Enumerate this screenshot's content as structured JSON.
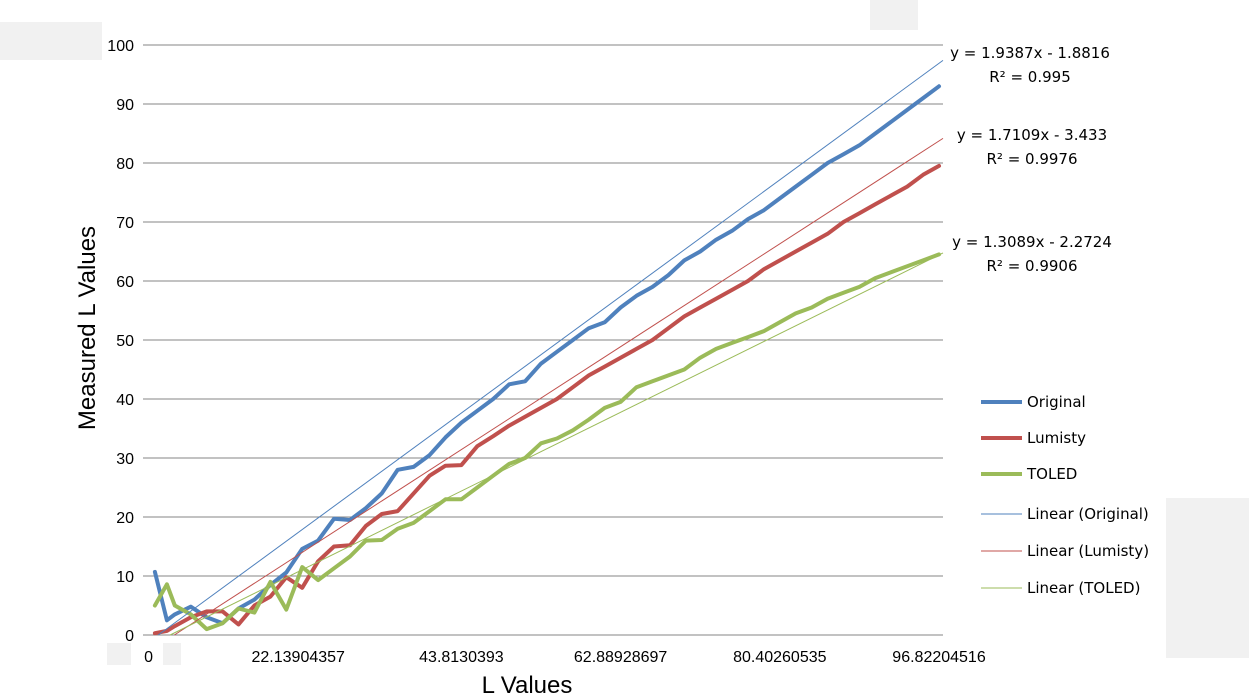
{
  "chart_data": {
    "type": "line",
    "title": "",
    "xlabel": "L Values",
    "ylabel": "Measured L Values",
    "ylim": [
      0,
      100
    ],
    "xlim": [
      0,
      100.5
    ],
    "y_ticks": [
      "0",
      "10",
      "20",
      "30",
      "40",
      "50",
      "60",
      "70",
      "80",
      "90",
      "100"
    ],
    "x_tick_labels": [
      {
        "label": "0",
        "x": 0.7
      },
      {
        "label": "22.13904357",
        "x": 19.5
      },
      {
        "label": "43.8130393",
        "x": 40.0
      },
      {
        "label": "62.88928697",
        "x": 60.0
      },
      {
        "label": "80.40260535",
        "x": 80.0
      },
      {
        "label": "96.82204516",
        "x": 100.0
      }
    ],
    "grid": "horizontal",
    "legend_position": "right",
    "series": [
      {
        "name": "Original",
        "color": "#4f81bd",
        "x": [
          1.5,
          3,
          4,
          6,
          8,
          10,
          12,
          14,
          16,
          18,
          20,
          22,
          24,
          26,
          28,
          30,
          32,
          34,
          36,
          38,
          40,
          42,
          44,
          46,
          48,
          50,
          52,
          54,
          56,
          58,
          60,
          62,
          64,
          66,
          68,
          70,
          72,
          74,
          76,
          78,
          80,
          82,
          84,
          86,
          88,
          90,
          92,
          94,
          96,
          98,
          100
        ],
        "y": [
          10.7,
          2.5,
          3.5,
          4.8,
          3.0,
          2.0,
          4.5,
          6.0,
          8.5,
          10.6,
          14.6,
          16,
          19.7,
          19.5,
          21.5,
          24,
          28,
          28.5,
          30.5,
          33.5,
          36,
          38,
          40,
          42.5,
          43,
          46,
          48,
          50,
          52,
          53,
          55.5,
          57.5,
          59,
          61,
          63.5,
          65,
          67,
          68.5,
          70.5,
          72,
          74,
          76,
          78,
          80,
          81.5,
          83,
          85,
          87,
          89,
          91,
          93
        ]
      },
      {
        "name": "Lumisty",
        "color": "#c0504d",
        "x": [
          1.5,
          3,
          4,
          6,
          8,
          10,
          12,
          14,
          16,
          18,
          20,
          22,
          24,
          26,
          28,
          30,
          32,
          34,
          36,
          38,
          40,
          42,
          44,
          46,
          48,
          50,
          52,
          54,
          56,
          58,
          60,
          62,
          64,
          66,
          68,
          70,
          72,
          74,
          76,
          78,
          80,
          82,
          84,
          86,
          88,
          90,
          92,
          94,
          96,
          98,
          100
        ],
        "y": [
          0.3,
          0.7,
          1.5,
          3.0,
          4.0,
          4.0,
          1.8,
          5,
          6.5,
          9.8,
          8,
          12.5,
          15,
          15.2,
          18.5,
          20.5,
          21,
          24,
          27,
          28.7,
          28.8,
          32,
          33.7,
          35.5,
          37,
          38.5,
          40,
          42,
          44,
          45.5,
          47,
          48.5,
          50,
          52,
          54,
          55.5,
          57,
          58.5,
          60,
          62,
          63.5,
          65,
          66.5,
          68,
          70,
          71.5,
          73,
          74.5,
          76,
          78,
          79.5
        ]
      },
      {
        "name": "TOLED",
        "color": "#9bbb59",
        "x": [
          1.5,
          3,
          4,
          6,
          8,
          10,
          12,
          14,
          16,
          18,
          20,
          22,
          24,
          26,
          28,
          30,
          32,
          34,
          36,
          38,
          40,
          42,
          44,
          46,
          48,
          50,
          52,
          54,
          56,
          58,
          60,
          62,
          64,
          66,
          68,
          70,
          72,
          74,
          76,
          78,
          80,
          82,
          84,
          86,
          88,
          90,
          92,
          94,
          96,
          98,
          100
        ],
        "y": [
          5,
          8.6,
          5,
          3.5,
          1,
          2,
          4.5,
          3.8,
          9,
          4.3,
          11.5,
          9.3,
          11.3,
          13.3,
          16,
          16.1,
          18,
          19,
          21,
          23,
          23,
          25,
          27,
          29,
          30,
          32.5,
          33.3,
          34.7,
          36.5,
          38.5,
          39.5,
          42,
          43,
          44,
          45,
          47,
          48.5,
          49.5,
          50.5,
          51.5,
          53,
          54.5,
          55.5,
          57,
          58,
          59,
          60.5,
          61.5,
          62.5,
          63.5,
          64.5
        ]
      }
    ],
    "trendlines": [
      {
        "name": "Linear (Original)",
        "color": "#4f81bd",
        "slope": 1.9387,
        "intercept": -1.8816,
        "scale": 0.5095,
        "equation": "y = 1.9387x - 1.8816",
        "r2": "R² = 0.995"
      },
      {
        "name": "Linear (Lumisty)",
        "color": "#c0504d",
        "slope": 1.7109,
        "intercept": -3.433,
        "scale": 0.5095,
        "equation": "y = 1.7109x - 3.433",
        "r2": "R² = 0.9976"
      },
      {
        "name": "Linear (TOLED)",
        "color": "#9bbb59",
        "slope": 1.3089,
        "intercept": -2.2724,
        "scale": 0.5095,
        "equation": "y = 1.3089x - 2.2724",
        "r2": "R² = 0.9906"
      }
    ]
  }
}
